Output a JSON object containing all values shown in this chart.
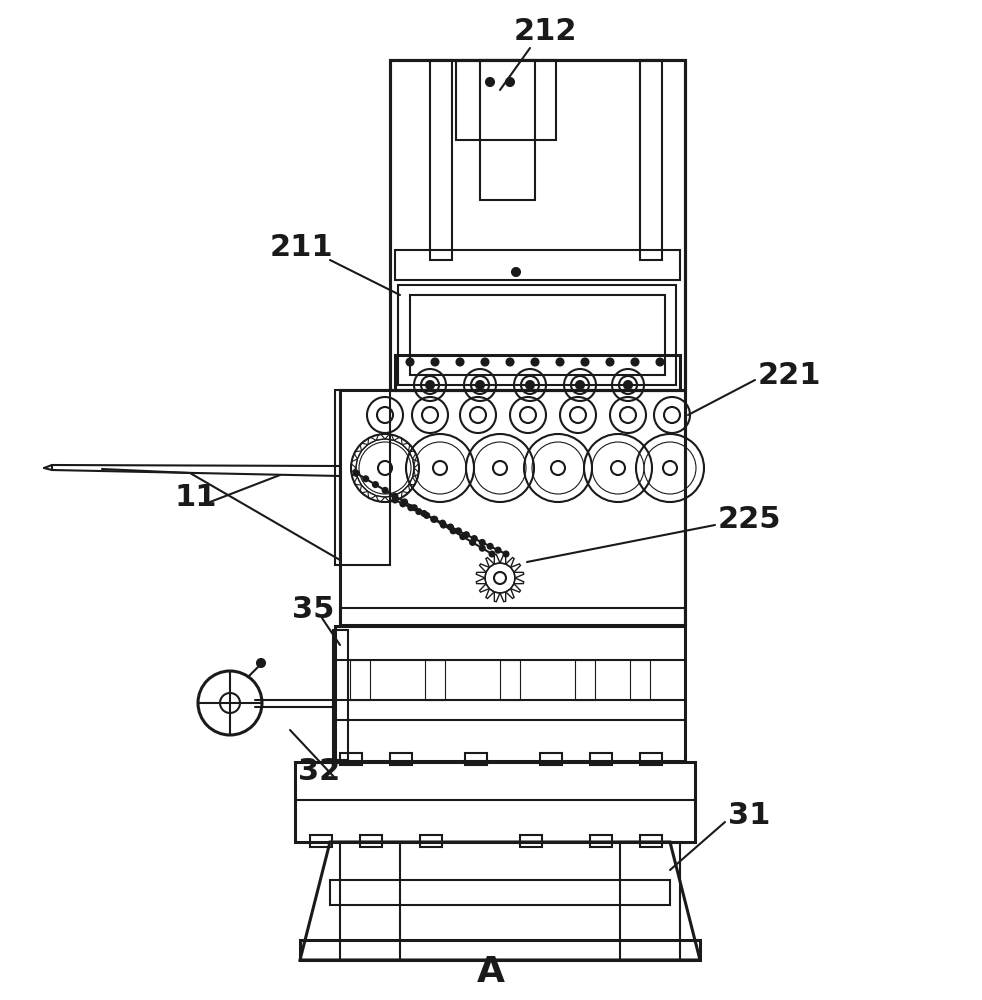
{
  "bg_color": "#ffffff",
  "lc": "#1a1a1a",
  "lw": 1.5,
  "tlw": 2.2,
  "fs": 22,
  "fs_a": 26
}
